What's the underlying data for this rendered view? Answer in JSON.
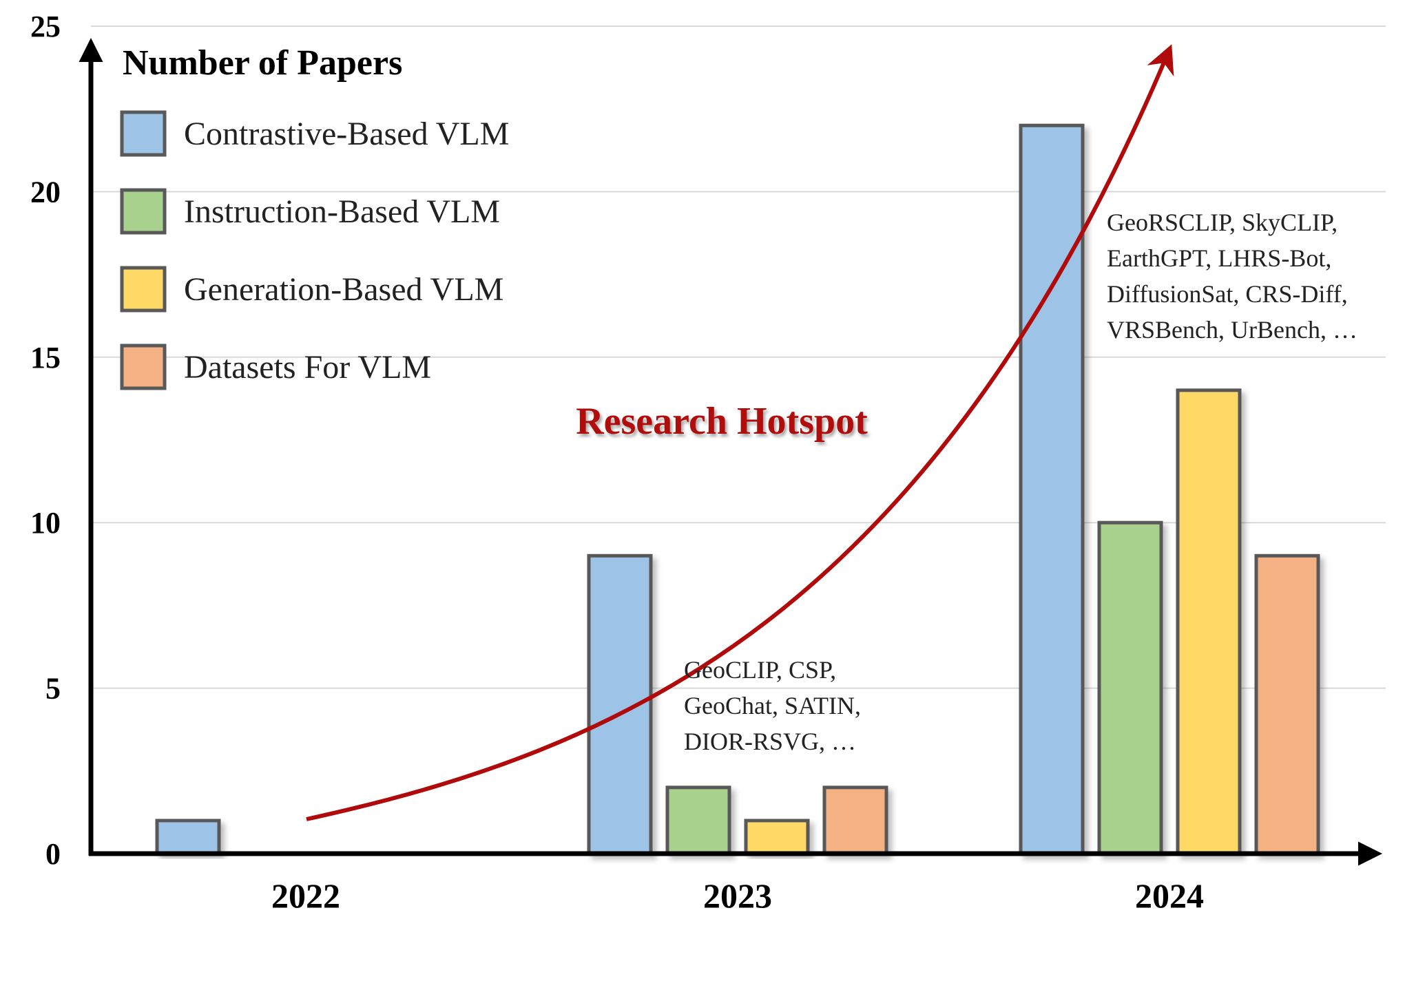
{
  "chart_data": {
    "type": "bar",
    "title": "Number of Papers",
    "categories": [
      "2022",
      "2023",
      "2024"
    ],
    "ylim": [
      0,
      25
    ],
    "yticks": [
      0,
      5,
      10,
      15,
      20,
      25
    ],
    "grid": true,
    "legend_position": "top-left",
    "series": [
      {
        "name": "Contrastive-Based VLM",
        "color": "#9dc3e6",
        "values": [
          1,
          9,
          22
        ]
      },
      {
        "name": "Instruction-Based VLM",
        "color": "#a9d18e",
        "values": [
          0,
          2,
          10
        ]
      },
      {
        "name": "Generation-Based VLM",
        "color": "#ffd966",
        "values": [
          0,
          1,
          14
        ]
      },
      {
        "name": "Datasets For VLM",
        "color": "#f4b183",
        "values": [
          0,
          2,
          9
        ]
      }
    ],
    "annotations": {
      "hotspot": "Research Hotspot",
      "hotspot_color": "#b00a0a",
      "note_2023": [
        "GeoCLIP, CSP,",
        "GeoChat, SATIN,",
        "DIOR-RSVG, …"
      ],
      "note_2024": [
        "GeoRSCLIP, SkyCLIP,",
        "EarthGPT, LHRS-Bot,",
        "DiffusionSat, CRS-Diff,",
        "VRSBench, UrBench, …"
      ]
    }
  }
}
